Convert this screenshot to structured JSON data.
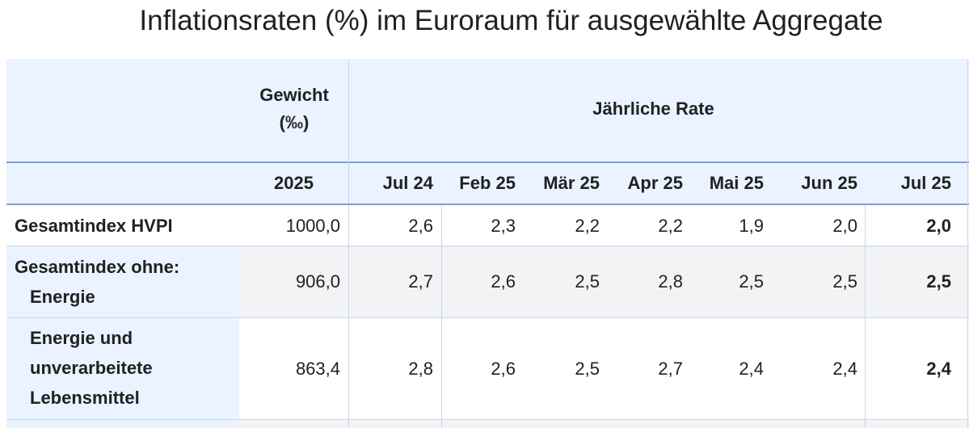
{
  "title": "Inflationsraten (%) im Euroraum für ausgewählte Aggregate",
  "header": {
    "weight_line1": "Gewicht",
    "weight_line2": "(‰)",
    "annual_rate": "Jährliche Rate",
    "weight_year": "2025",
    "months": [
      "Jul 24",
      "Feb 25",
      "Mär 25",
      "Apr 25",
      "Mai 25",
      "Jun 25",
      "Jul 25"
    ]
  },
  "rows": [
    {
      "label_lines": [
        "Gesamtindex HVPI"
      ],
      "weight": "1000,0",
      "values": [
        "2,6",
        "2,3",
        "2,2",
        "2,2",
        "1,9",
        "2,0",
        "2,0"
      ]
    },
    {
      "label_lines": [
        "Gesamtindex ohne:",
        "Energie"
      ],
      "weight": "906,0",
      "values": [
        "2,7",
        "2,6",
        "2,5",
        "2,8",
        "2,5",
        "2,5",
        "2,5"
      ]
    },
    {
      "label_lines": [
        "Energie und",
        "unverarbeitete",
        "Lebensmittel"
      ],
      "weight": "863,4",
      "values": [
        "2,8",
        "2,6",
        "2,5",
        "2,7",
        "2,4",
        "2,4",
        "2,4"
      ]
    }
  ],
  "colors": {
    "header_bg": "#eaf3ff",
    "accent_line": "#7e9ede",
    "stripe_bg": "#f2f3f4",
    "row_border": "#c8d4ec"
  }
}
